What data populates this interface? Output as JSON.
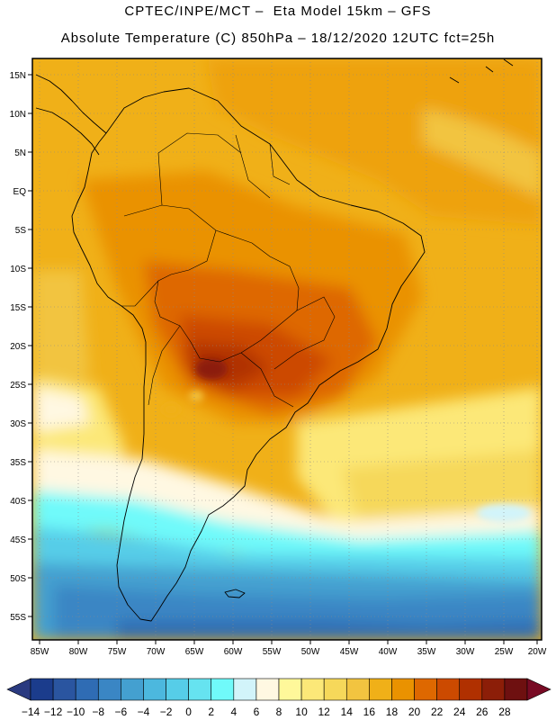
{
  "title": {
    "line1": "CPTEC/INPE/MCT –  Eta Model 15km – GFS",
    "line2": "Absolute Temperature (C) 850hPa – 18/12/2020 12UTC fct=25h"
  },
  "map": {
    "lat_labels": [
      "15N",
      "10N",
      "5N",
      "EQ",
      "5S",
      "10S",
      "15S",
      "20S",
      "25S",
      "30S",
      "35S",
      "40S",
      "45S",
      "50S",
      "55S"
    ],
    "lon_labels": [
      "85W",
      "80W",
      "75W",
      "70W",
      "65W",
      "60W",
      "55W",
      "50W",
      "45W",
      "40W",
      "35W",
      "30W",
      "25W",
      "20W"
    ]
  },
  "colorbar": {
    "labels": [
      "-14",
      "-12",
      "-10",
      "-8",
      "-6",
      "-4",
      "-2",
      "0",
      "2",
      "4",
      "6",
      "8",
      "10",
      "12",
      "14",
      "16",
      "18",
      "20",
      "22",
      "24",
      "26",
      "28"
    ],
    "colors": [
      "#1b3c8c",
      "#2a55a0",
      "#2f6cb4",
      "#3a86c4",
      "#44a0d0",
      "#4cb8de",
      "#56cde8",
      "#66e3f0",
      "#70fafa",
      "#d2f4fa",
      "#fff8e2",
      "#fff89a",
      "#fce878",
      "#f6d85a",
      "#f2c440",
      "#f0b018",
      "#ea9200",
      "#de6800",
      "#cc4a00",
      "#b03000",
      "#8c1e08",
      "#6e1010"
    ],
    "under_color": "#2a3a80",
    "over_color": "#780a24"
  }
}
